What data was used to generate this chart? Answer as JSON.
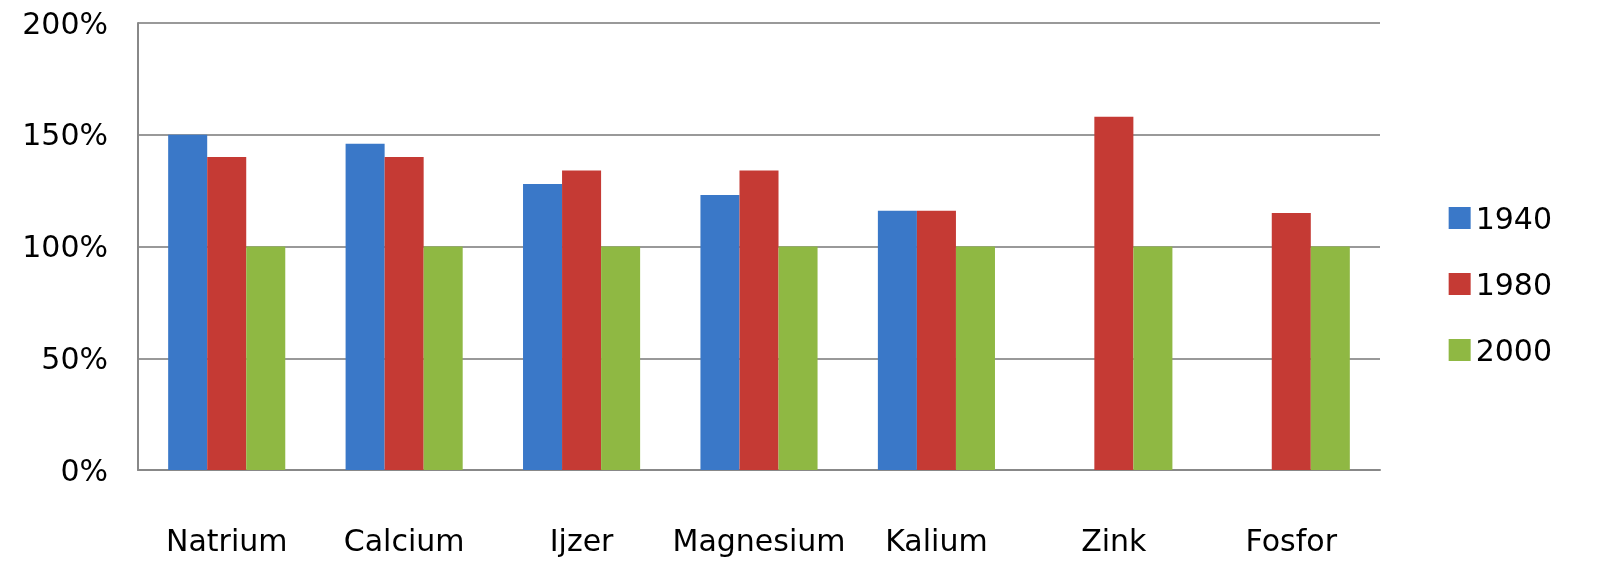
{
  "chart_data": {
    "type": "bar",
    "categories": [
      "Natrium",
      "Calcium",
      "Ijzer",
      "Magnesium",
      "Kalium",
      "Zink",
      "Fosfor"
    ],
    "series": [
      {
        "name": "1940",
        "color": "#3a78c8",
        "values": [
          150,
          146,
          128,
          123,
          116,
          null,
          null
        ]
      },
      {
        "name": "1980",
        "color": "#c53a34",
        "values": [
          140,
          140,
          134,
          134,
          116,
          158,
          115
        ]
      },
      {
        "name": "2000",
        "color": "#8fb843",
        "values": [
          100,
          100,
          100,
          100,
          100,
          100,
          100
        ]
      }
    ],
    "ylim": [
      0,
      200
    ],
    "yticks": [
      {
        "value": 0,
        "label": "0%"
      },
      {
        "value": 50,
        "label": "50%"
      },
      {
        "value": 100,
        "label": "100%"
      },
      {
        "value": 150,
        "label": "150%"
      },
      {
        "value": 200,
        "label": "200%"
      }
    ],
    "grid": "y",
    "legend": "right"
  }
}
